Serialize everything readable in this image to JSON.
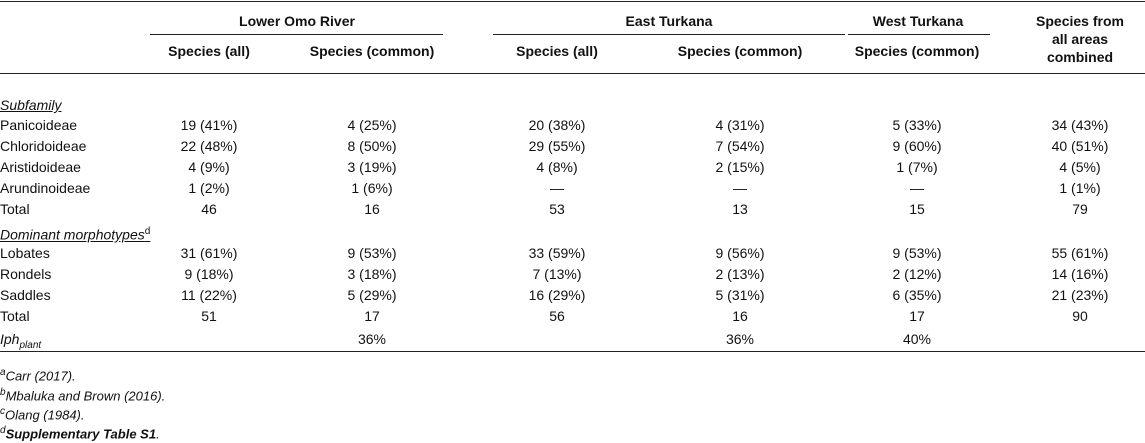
{
  "headers": {
    "groups": [
      "Lower Omo River",
      "East Turkana",
      "West Turkana"
    ],
    "sub": [
      "Species (all)",
      "Species (common)",
      "Species (all)",
      "Species (common)",
      "Species (common)"
    ],
    "combined_line1": "Species from",
    "combined_line2": "all areas",
    "combined_line3": "combined"
  },
  "sections": {
    "subfamily": "Subfamily",
    "morph": "Dominant morphotypes",
    "morph_sup": "d"
  },
  "rows": [
    {
      "label": "Panicoideae",
      "v": [
        "19 (41%)",
        "4 (25%)",
        "20 (38%)",
        "4 (31%)",
        "5 (33%)",
        "34 (43%)"
      ]
    },
    {
      "label": "Chloridoideae",
      "v": [
        "22 (48%)",
        "8 (50%)",
        "29 (55%)",
        "7 (54%)",
        "9 (60%)",
        "40 (51%)"
      ]
    },
    {
      "label": "Aristidoideae",
      "v": [
        "4 (9%)",
        "3 (19%)",
        "4 (8%)",
        "2 (15%)",
        "1 (7%)",
        "4 (5%)"
      ]
    },
    {
      "label": "Arundinoideae",
      "v": [
        "1 (2%)",
        "1 (6%)",
        "—",
        "—",
        "—",
        "1 (1%)"
      ]
    },
    {
      "label": "Total",
      "v": [
        "46",
        "16",
        "53",
        "13",
        "15",
        "79"
      ]
    },
    {
      "label": "Lobates",
      "v": [
        "31 (61%)",
        "9 (53%)",
        "33 (59%)",
        "9 (56%)",
        "9 (53%)",
        "55 (61%)"
      ]
    },
    {
      "label": "Rondels",
      "v": [
        "9 (18%)",
        "3 (18%)",
        "7 (13%)",
        "2 (13%)",
        "2 (12%)",
        "14 (16%)"
      ]
    },
    {
      "label": "Saddles",
      "v": [
        "11 (22%)",
        "5 (29%)",
        "16 (29%)",
        "5 (31%)",
        "6 (35%)",
        "21 (23%)"
      ]
    },
    {
      "label": "Total",
      "v": [
        "51",
        "17",
        "56",
        "16",
        "17",
        "90"
      ]
    }
  ],
  "iph": {
    "label": "Iph",
    "sub": "plant",
    "v": [
      "",
      "36%",
      "",
      "36%",
      "40%",
      ""
    ]
  },
  "footnotes": [
    {
      "sup": "a",
      "text": "Carr (2017)."
    },
    {
      "sup": "b",
      "text": "Mbaluka and Brown (2016)."
    },
    {
      "sup": "c",
      "text": "Olang (1984)."
    },
    {
      "sup": "d",
      "text": "Supplementary Table S1",
      "tail": "."
    }
  ]
}
